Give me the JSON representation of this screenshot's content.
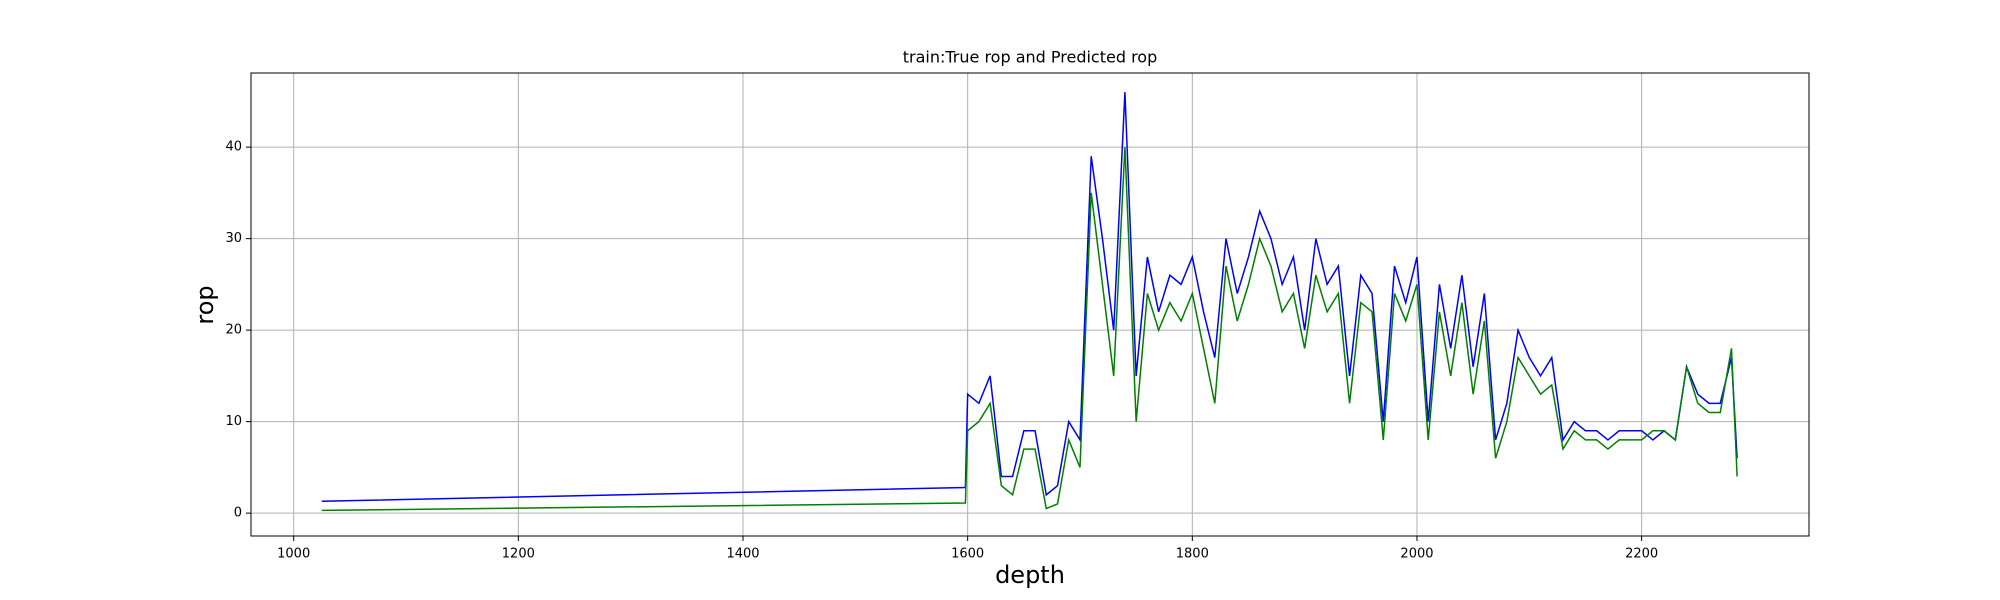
{
  "chart_data": {
    "type": "line",
    "title": "train:True rop and Predicted rop",
    "x_label": "depth",
    "y_label": "rop",
    "x": [
      1025,
      1598,
      1600,
      1610,
      1620,
      1630,
      1640,
      1650,
      1660,
      1670,
      1680,
      1690,
      1700,
      1710,
      1720,
      1730,
      1740,
      1750,
      1760,
      1770,
      1780,
      1790,
      1800,
      1810,
      1820,
      1830,
      1840,
      1850,
      1860,
      1870,
      1880,
      1890,
      1900,
      1910,
      1920,
      1930,
      1940,
      1950,
      1960,
      1970,
      1980,
      1990,
      2000,
      2010,
      2020,
      2030,
      2040,
      2050,
      2060,
      2070,
      2080,
      2090,
      2100,
      2110,
      2120,
      2130,
      2140,
      2150,
      2160,
      2170,
      2180,
      2190,
      2200,
      2210,
      2220,
      2230,
      2240,
      2250,
      2260,
      2270,
      2280,
      2285
    ],
    "series": [
      {
        "color": "#0000ff",
        "values": [
          1.3,
          2.8,
          13,
          12,
          15,
          4,
          4,
          9,
          9,
          2,
          3,
          10,
          8,
          39,
          30,
          20,
          46,
          15,
          28,
          22,
          26,
          25,
          28,
          22,
          17,
          30,
          24,
          28,
          33,
          30,
          25,
          28,
          20,
          30,
          25,
          27,
          15,
          26,
          24,
          10,
          27,
          23,
          28,
          10,
          25,
          18,
          26,
          16,
          24,
          8,
          12,
          20,
          17,
          15,
          17,
          8,
          10,
          9,
          9,
          8,
          9,
          9,
          9,
          8,
          9,
          8,
          16,
          13,
          12,
          12,
          17,
          6
        ]
      },
      {
        "color": "#008000",
        "values": [
          0.3,
          1.1,
          9,
          10,
          12,
          3,
          2,
          7,
          7,
          0.5,
          1,
          8,
          5,
          35,
          25,
          15,
          40,
          10,
          24,
          20,
          23,
          21,
          24,
          18,
          12,
          27,
          21,
          25,
          30,
          27,
          22,
          24,
          18,
          26,
          22,
          24,
          12,
          23,
          22,
          8,
          24,
          21,
          25,
          8,
          22,
          15,
          23,
          13,
          21,
          6,
          10,
          17,
          15,
          13,
          14,
          7,
          9,
          8,
          8,
          7,
          8,
          8,
          8,
          9,
          9,
          8,
          16,
          12,
          11,
          11,
          18,
          4
        ]
      }
    ],
    "xlim": [
      962,
      2349
    ],
    "ylim": [
      -2.5,
      48.1
    ],
    "xticks": [
      1000,
      1200,
      1400,
      1600,
      1800,
      2000,
      2200
    ],
    "yticks": [
      0,
      10,
      20,
      30,
      40
    ],
    "grid": true
  }
}
